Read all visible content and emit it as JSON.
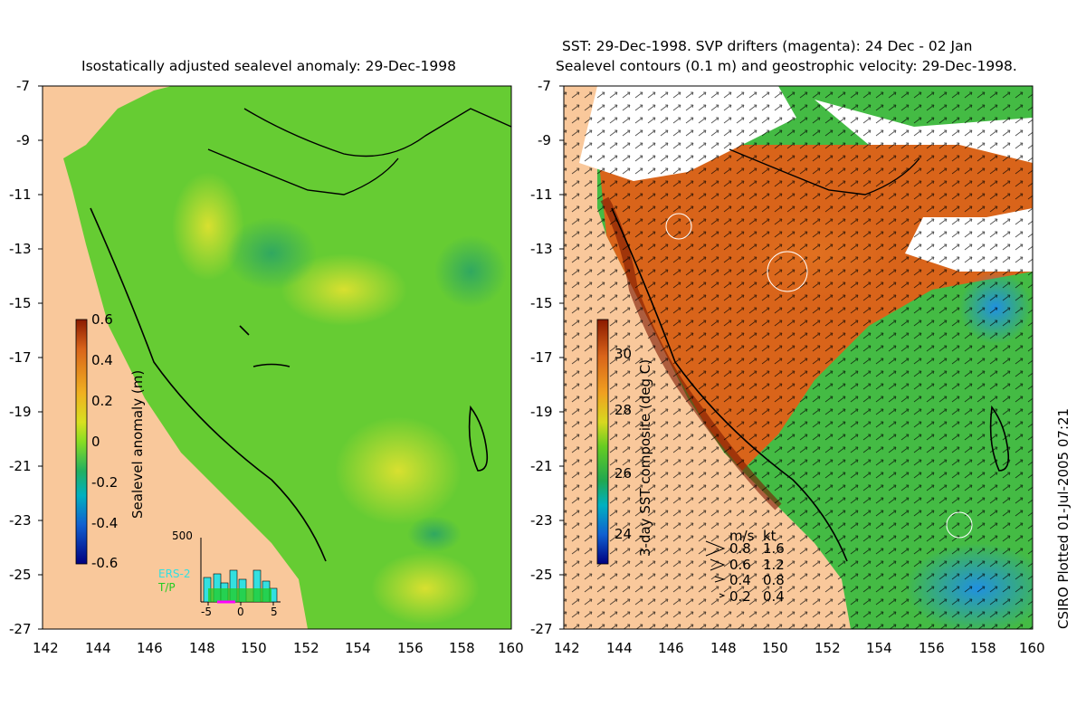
{
  "left_panel": {
    "title": "Isostatically adjusted sealevel anomaly: 29-Dec-1998",
    "colorbar": {
      "label": "Sealevel anomaly (m)",
      "ticks": [
        "0.6",
        "0.4",
        "0.2",
        "0",
        "-0.2",
        "-0.4",
        "-0.6"
      ]
    },
    "inset": {
      "ymax_label": "500",
      "xticks": [
        "-5",
        "0",
        "5"
      ],
      "legend": [
        {
          "name": "ERS-2",
          "color": "#33e0e0"
        },
        {
          "name": "T/P",
          "color": "#22cc22"
        }
      ]
    }
  },
  "right_panel": {
    "title_line1": "SST: 29-Dec-1998. SVP drifters (magenta): 24 Dec - 02 Jan",
    "title_line2": "Sealevel contours (0.1 m) and geostrophic velocity: 29-Dec-1998.",
    "colorbar": {
      "label": "3-day SST composite (deg C)",
      "ticks": [
        "30",
        "28",
        "26",
        "24"
      ]
    },
    "velocity_legend": {
      "header_ms": "m/s",
      "header_kt": "kt",
      "rows": [
        {
          "ms": "0.8",
          "kt": "1.6"
        },
        {
          "ms": "0.6",
          "kt": "1.2"
        },
        {
          "ms": "0.4",
          "kt": "0.8"
        },
        {
          "ms": "0.2",
          "kt": "0.4"
        }
      ]
    }
  },
  "axes": {
    "lat_ticks": [
      "-7",
      "-9",
      "-11",
      "-13",
      "-15",
      "-17",
      "-19",
      "-21",
      "-23",
      "-25",
      "-27"
    ],
    "lon_ticks": [
      "142",
      "144",
      "146",
      "148",
      "150",
      "152",
      "154",
      "156",
      "158",
      "160"
    ]
  },
  "credit": "CSIRO Plotted 01-Jul-2005 07:21",
  "colors": {
    "land": "#f9c89b",
    "sea_green": "#66cc33",
    "sst_warm": "#d9641a",
    "sst_cool": "#44bb44"
  }
}
